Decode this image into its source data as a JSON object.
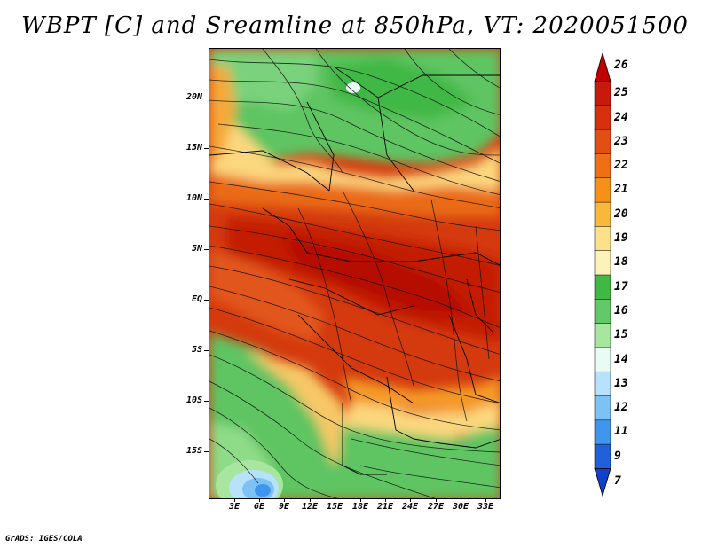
{
  "title": "WBPT [C] and Sreamline at 850hPa, VT: 2020051500",
  "credit": "GrADS: IGES/COLA",
  "y_axis_labels": [
    "20N",
    "15N",
    "10N",
    "5N",
    "EQ",
    "5S",
    "10S",
    "15S"
  ],
  "x_axis_labels": [
    "3E",
    "6E",
    "9E",
    "12E",
    "15E",
    "18E",
    "21E",
    "24E",
    "27E",
    "30E",
    "33E"
  ],
  "colorbar": {
    "levels": [
      "26",
      "25",
      "24",
      "23",
      "22",
      "21",
      "20",
      "19",
      "18",
      "17",
      "16",
      "15",
      "14",
      "13",
      "12",
      "11",
      "9",
      "7"
    ],
    "colors": [
      "#c00000",
      "#c81a0a",
      "#d7300f",
      "#e24f12",
      "#ee6f16",
      "#f59019",
      "#f9b73c",
      "#fde08a",
      "#fdf2b8",
      "#3fb844",
      "#63c867",
      "#a8e6a0",
      "#eafbf5",
      "#b8e2fb",
      "#7cc2f4",
      "#3f96ea",
      "#2060d8",
      "#1240c8"
    ]
  },
  "map": {
    "variable": "Wet-bulb potential temperature (C)",
    "level": "850hPa",
    "valid_time": "2020051500",
    "lon_range": [
      "1E",
      "35E"
    ],
    "lat_range": [
      "20S",
      "24N"
    ]
  }
}
